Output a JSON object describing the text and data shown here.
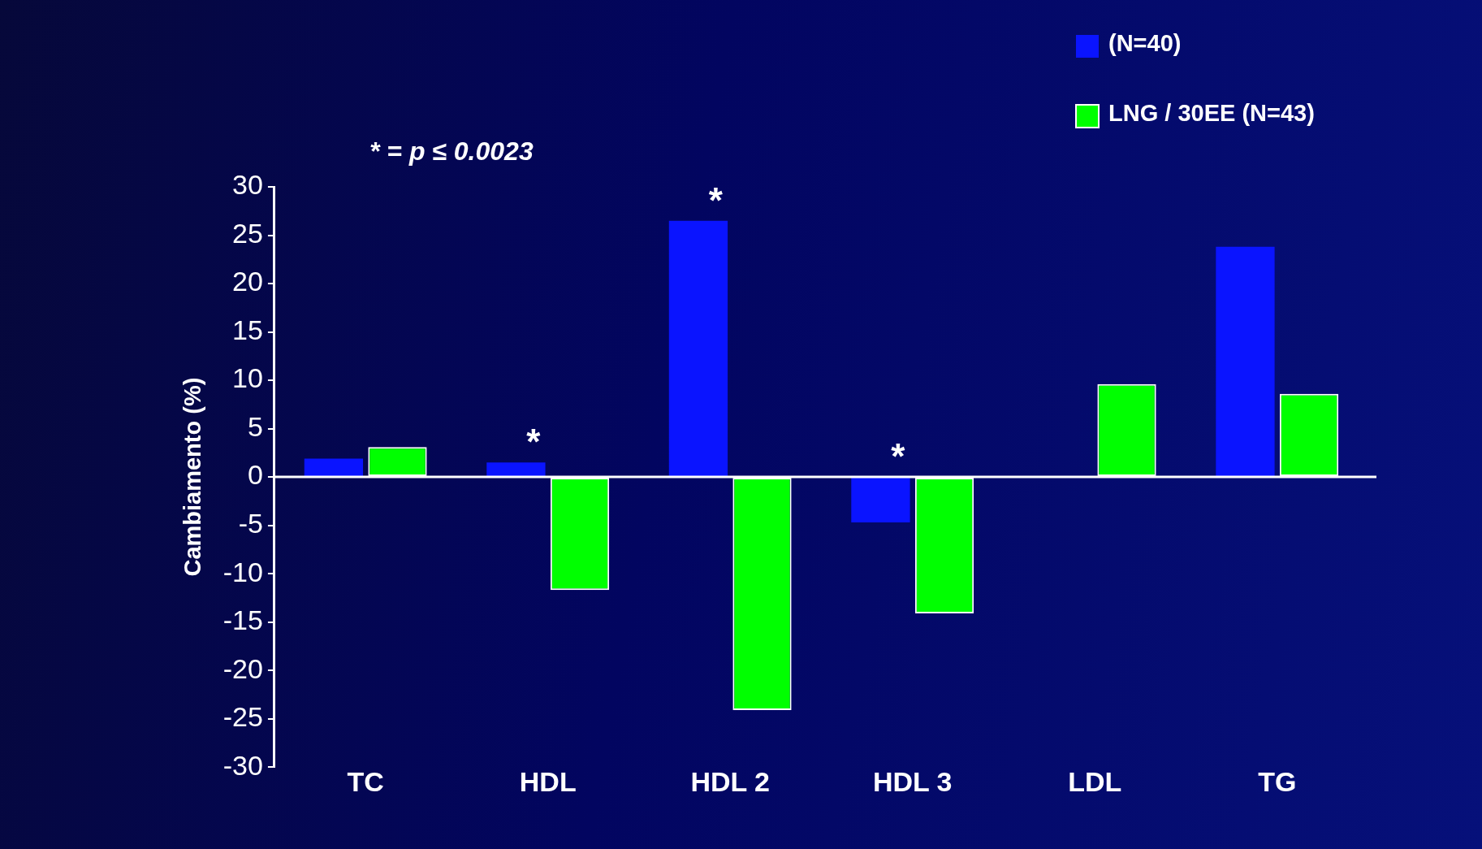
{
  "chart_data": {
    "type": "bar",
    "ylabel": "Cambiamento (%)",
    "categories": [
      "TC",
      "HDL",
      "HDL 2",
      "HDL 3",
      "LDL",
      "TG"
    ],
    "series": [
      {
        "name": "(N=40)",
        "color": "#0a14ff",
        "values": [
          1.9,
          1.5,
          26.5,
          -4.7,
          null,
          23.8
        ]
      },
      {
        "name": "LNG / 30EE (N=43)",
        "color": "#00ff00",
        "values": [
          3.1,
          -11.7,
          -24.1,
          -14.1,
          9.6,
          8.6
        ]
      }
    ],
    "ylim": [
      -30,
      30
    ],
    "yticks": [
      -30,
      -25,
      -20,
      -15,
      -10,
      -5,
      0,
      5,
      10,
      15,
      20,
      25,
      30
    ],
    "legend": "top right",
    "annotations": [
      "* = p ≤ 0.0023",
      {
        "text": "*",
        "x": "HDL",
        "y": 1.5
      },
      {
        "text": "*",
        "x": "HDL 2",
        "y": 26.5
      },
      {
        "text": "*",
        "x": "HDL 3",
        "y": 0
      }
    ]
  }
}
